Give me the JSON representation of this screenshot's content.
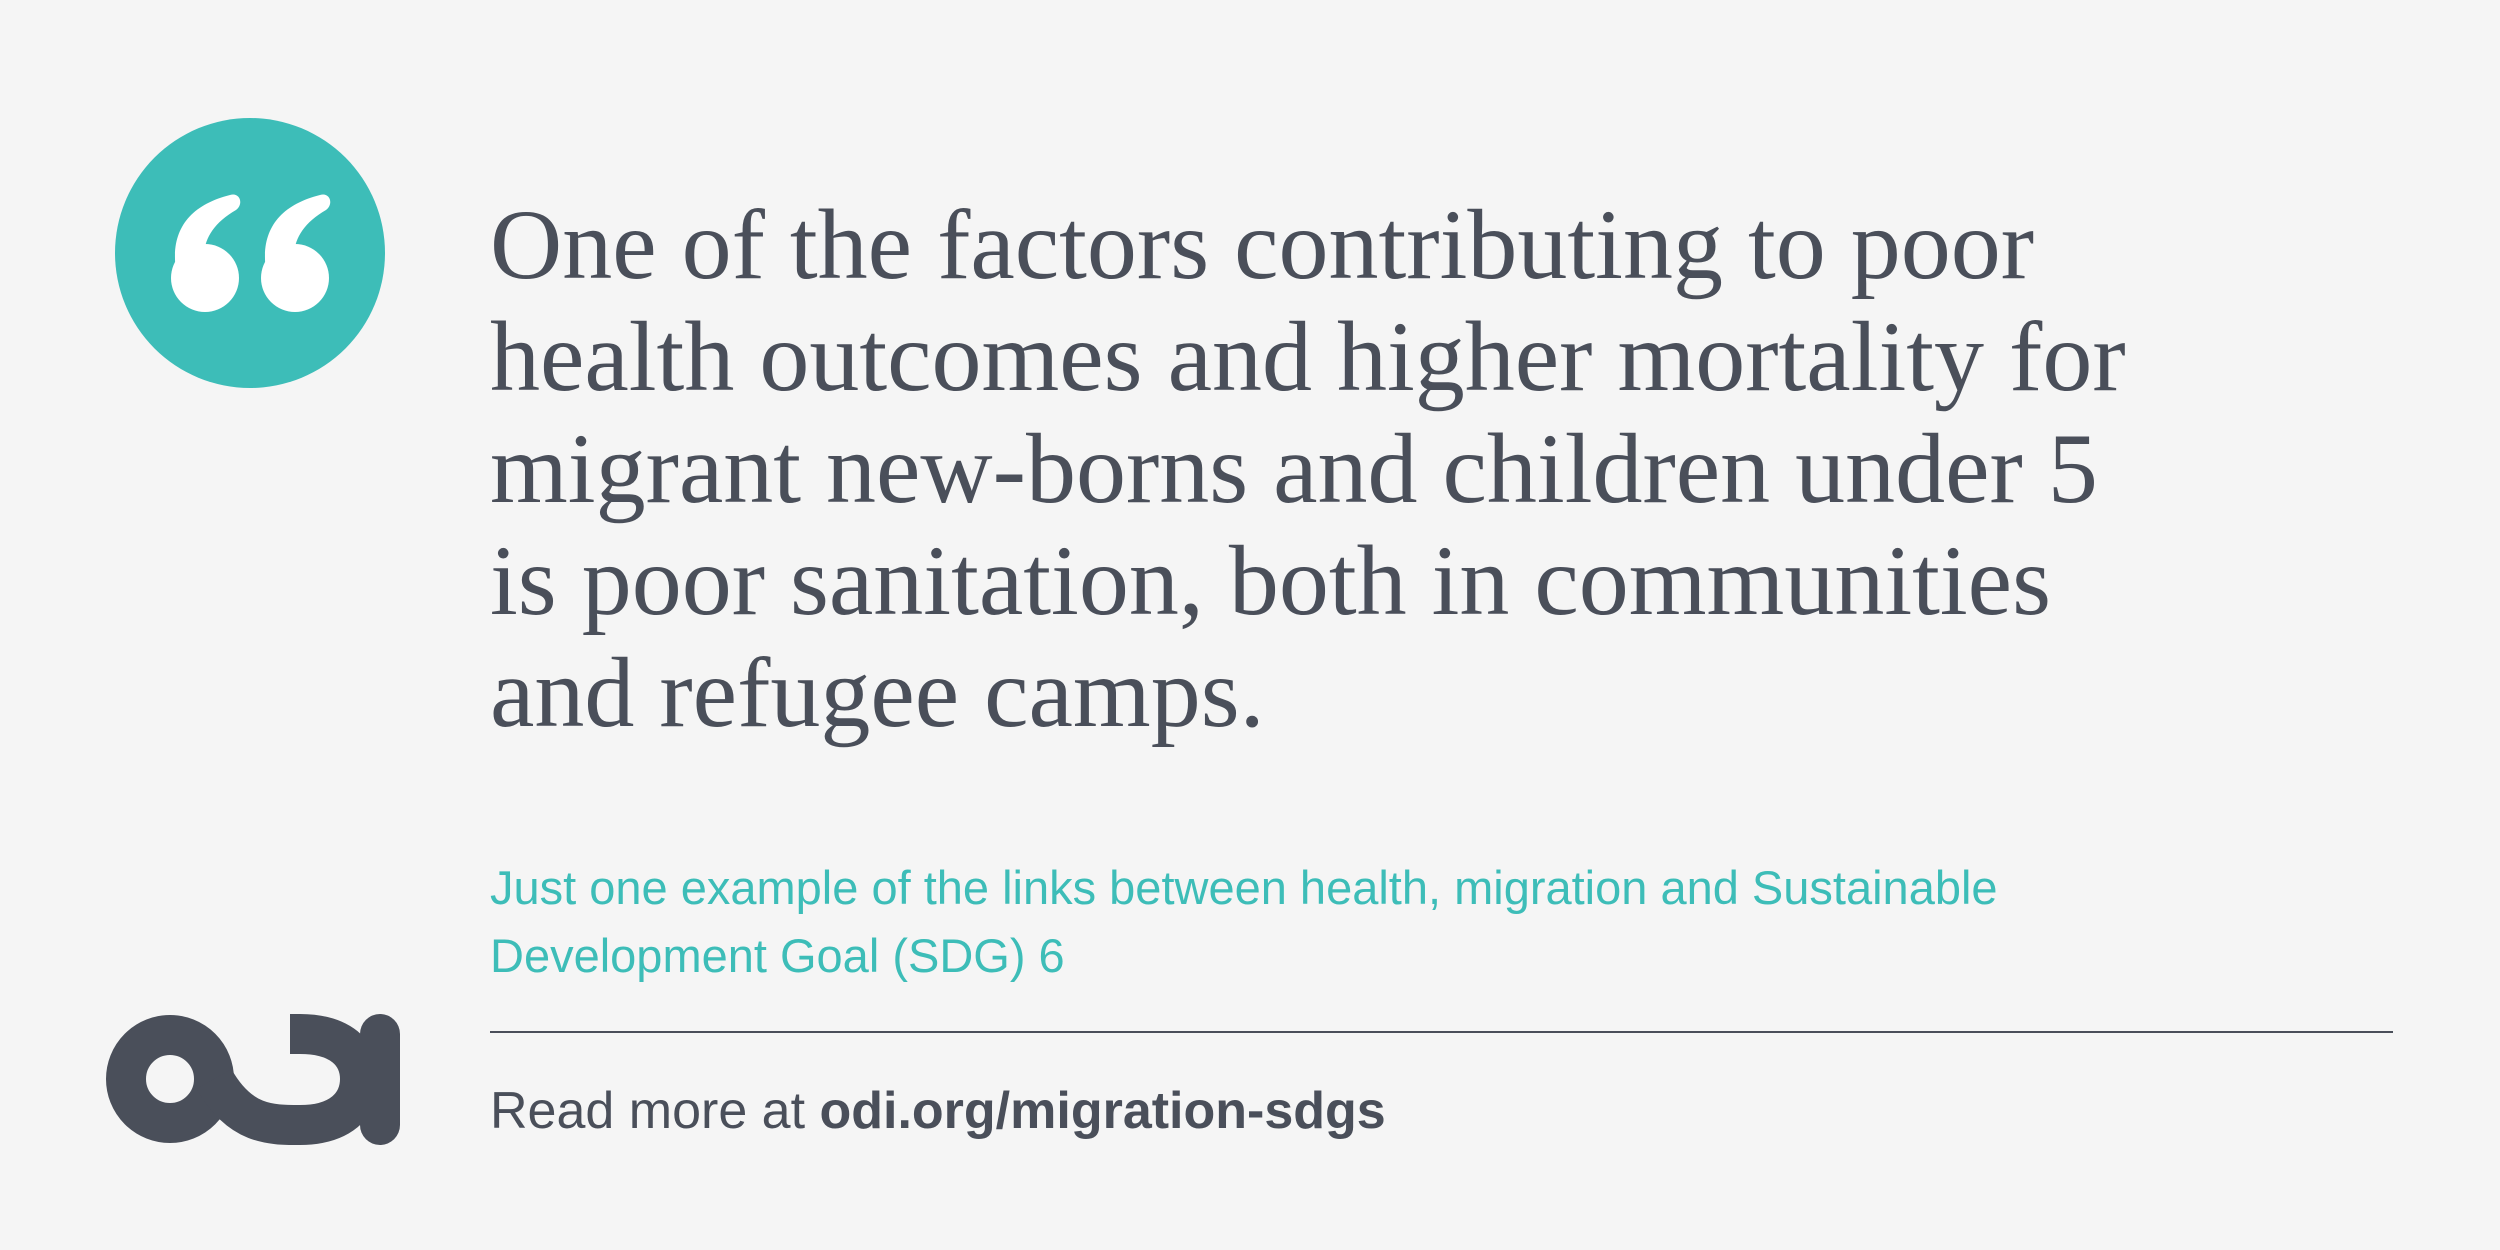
{
  "quote": {
    "lines": [
      "One of the factors contributing to poor",
      "health outcomes and higher mortality for",
      "migrant new-borns and children under 5",
      "is poor sanitation, both in communities",
      "and refugee camps."
    ]
  },
  "caption": {
    "lines": [
      "Just one example of the links between health, migration and Sustainable",
      "Development Goal (SDG) 6"
    ]
  },
  "footer": {
    "prefix": "Read more at",
    "link": "odi.org/migration-sdgs"
  }
}
